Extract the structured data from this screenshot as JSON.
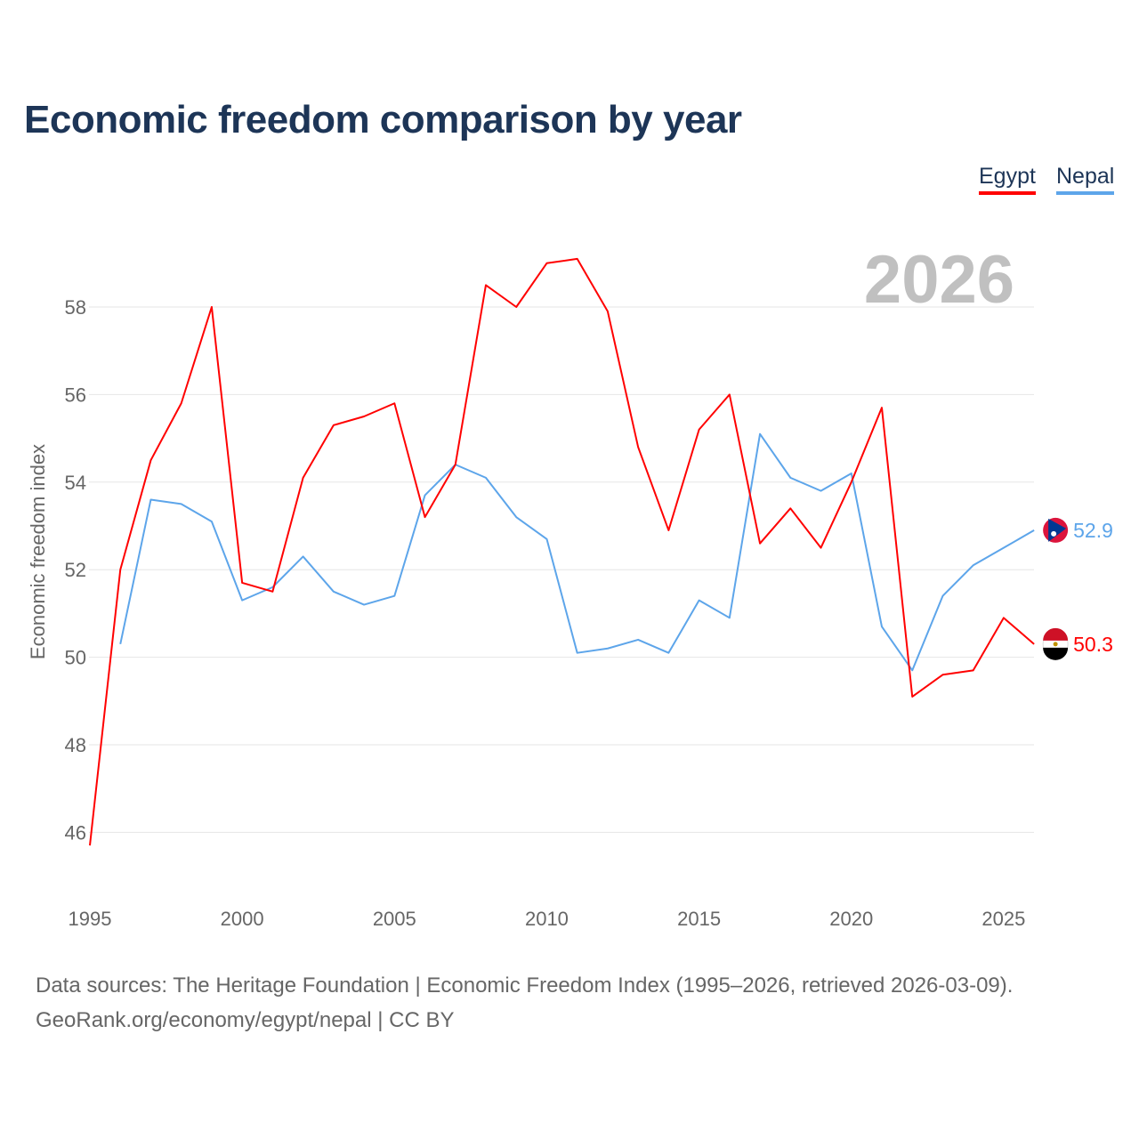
{
  "title": "Economic freedom comparison by year",
  "footer": {
    "line1": "Data sources: The Heritage Foundation | Economic Freedom Index (1995–2026, retrieved 2026-03-09).",
    "line2": "GeoRank.org/economy/egypt/nepal | CC BY"
  },
  "chart_data": {
    "type": "line",
    "title": "Economic freedom comparison by year",
    "ylabel": "Economic freedom index",
    "xlabel": "",
    "year_label": "2026",
    "xlim": [
      1995,
      2026
    ],
    "ylim": [
      45,
      60
    ],
    "x_ticks": [
      "1995",
      "2000",
      "2005",
      "2010",
      "2015",
      "2020",
      "2025"
    ],
    "y_ticks": [
      "46",
      "48",
      "50",
      "52",
      "54",
      "56",
      "58"
    ],
    "grid": true,
    "legend_position": "top-right",
    "series": [
      {
        "name": "Egypt",
        "color": "#ff0000",
        "end_label": "50.3",
        "x": [
          1995,
          1996,
          1997,
          1998,
          1999,
          2000,
          2001,
          2002,
          2003,
          2004,
          2005,
          2006,
          2007,
          2008,
          2009,
          2010,
          2011,
          2012,
          2013,
          2014,
          2015,
          2016,
          2017,
          2018,
          2019,
          2020,
          2021,
          2022,
          2023,
          2024,
          2025,
          2026
        ],
        "values": [
          45.7,
          52.0,
          54.5,
          55.8,
          58.0,
          51.7,
          51.5,
          54.1,
          55.3,
          55.5,
          55.8,
          53.2,
          54.4,
          58.5,
          58.0,
          59.0,
          59.1,
          57.9,
          54.8,
          52.9,
          55.2,
          56.0,
          52.6,
          53.4,
          52.5,
          54.0,
          55.7,
          49.1,
          49.6,
          49.7,
          50.9,
          50.3
        ]
      },
      {
        "name": "Nepal",
        "color": "#5da5ea",
        "end_label": "52.9",
        "x": [
          1996,
          1997,
          1998,
          1999,
          2000,
          2001,
          2002,
          2003,
          2004,
          2005,
          2006,
          2007,
          2008,
          2009,
          2010,
          2011,
          2012,
          2013,
          2014,
          2015,
          2016,
          2017,
          2018,
          2019,
          2020,
          2021,
          2022,
          2023,
          2024,
          2025,
          2026
        ],
        "values": [
          50.3,
          53.6,
          53.5,
          53.1,
          51.3,
          51.6,
          52.3,
          51.5,
          51.2,
          51.4,
          53.7,
          54.4,
          54.1,
          53.2,
          52.7,
          50.1,
          50.2,
          50.4,
          50.1,
          51.3,
          50.9,
          55.1,
          54.1,
          53.8,
          54.2,
          50.7,
          49.7,
          51.4,
          52.1,
          52.5,
          52.9
        ]
      }
    ]
  }
}
